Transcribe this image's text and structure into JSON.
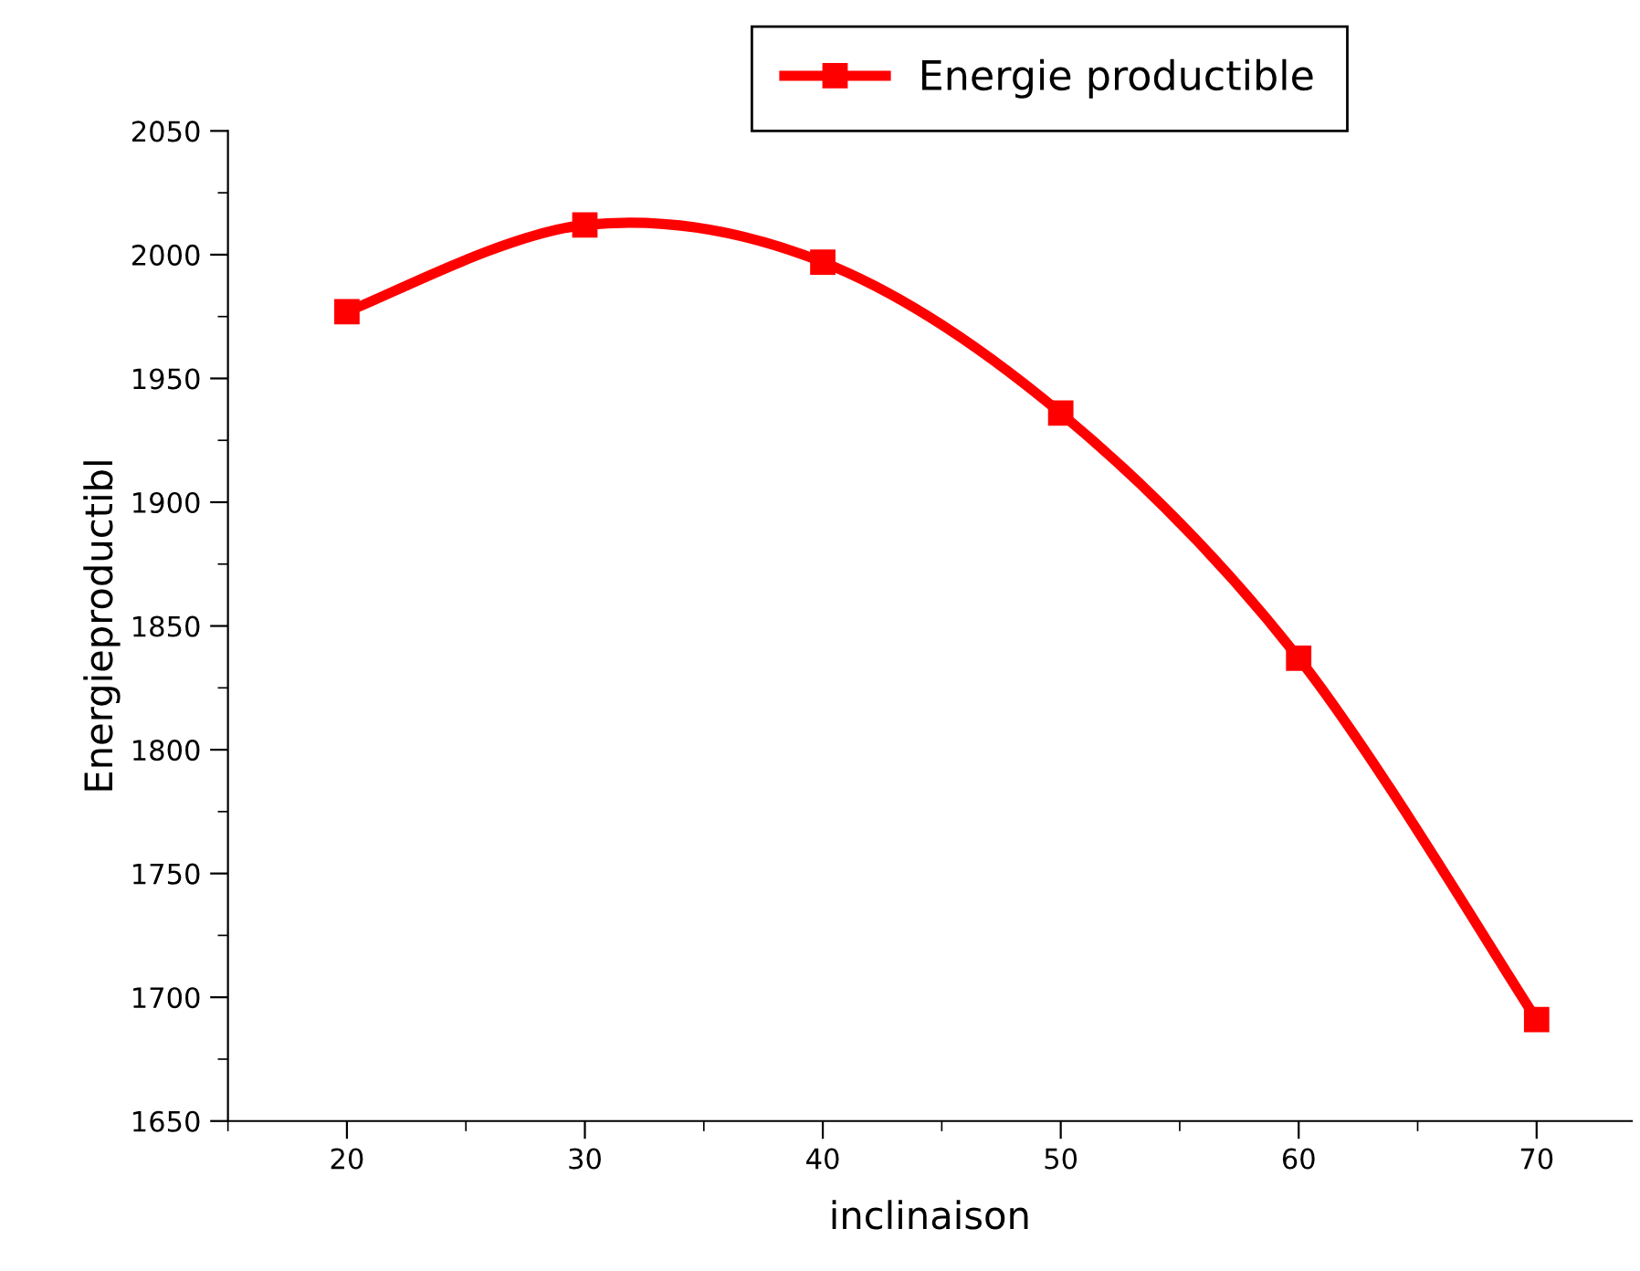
{
  "chart_data": {
    "type": "line",
    "xlabel": "inclinaison",
    "ylabel": "Energieproductibl",
    "x": [
      20,
      30,
      40,
      50,
      60,
      70
    ],
    "series": [
      {
        "name": "Energie productible",
        "color": "#ff0000",
        "values": [
          1977,
          2012,
          1997,
          1936,
          1837,
          1691
        ]
      }
    ],
    "xlim": [
      15,
      74
    ],
    "xticks": [
      20,
      30,
      40,
      50,
      60,
      70
    ],
    "ylim": [
      1650,
      2050
    ],
    "yticks": [
      1650,
      1700,
      1750,
      1800,
      1850,
      1900,
      1950,
      2000,
      2050
    ],
    "grid": false,
    "legend": "top",
    "marker": "square",
    "line_style": "solid"
  }
}
